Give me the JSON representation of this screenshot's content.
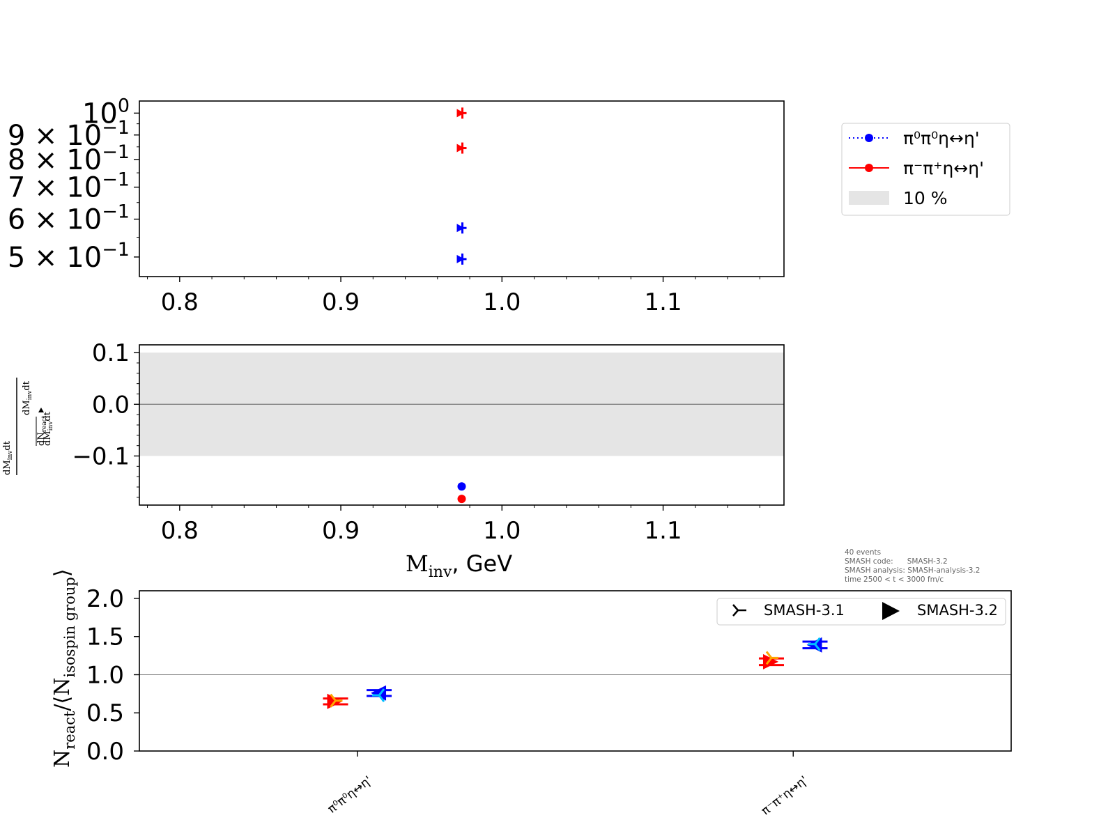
{
  "chart_data": [
    {
      "type": "scatter",
      "panel": "top",
      "yscale": "log",
      "xlim": [
        0.775,
        1.175
      ],
      "ylim": [
        0.455,
        1.06
      ],
      "xticks": [
        0.8,
        0.9,
        1.0,
        1.1
      ],
      "xtick_labels": [
        "0.8",
        "0.9",
        "1.0",
        "1.1"
      ],
      "ytick_labels": [
        {
          "value": 1.0,
          "mant": "",
          "exp": "0"
        },
        {
          "value": 0.9,
          "mant": "9 × ",
          "exp": "−1"
        },
        {
          "value": 0.8,
          "mant": "8 × ",
          "exp": "−1"
        },
        {
          "value": 0.7,
          "mant": "7 × ",
          "exp": "−1"
        },
        {
          "value": 0.6,
          "mant": "6 × ",
          "exp": "−1"
        },
        {
          "value": 0.5,
          "mant": "5 × ",
          "exp": "−1"
        }
      ],
      "series": [
        {
          "name": "π⁰π⁰η↔η'",
          "color": "#0000ff",
          "points": [
            {
              "x": 0.975,
              "y": 0.575
            },
            {
              "x": 0.975,
              "y": 0.495
            }
          ]
        },
        {
          "name": "π⁻π⁺η↔η'",
          "color": "#ff0000",
          "points": [
            {
              "x": 0.975,
              "y": 1.0
            },
            {
              "x": 0.975,
              "y": 0.845
            }
          ]
        }
      ],
      "legend": {
        "placement": "outside-right",
        "entries": [
          {
            "label": "π⁰π⁰η↔η'",
            "color": "#0000ff",
            "style": "dotted-line-dot"
          },
          {
            "label": "π⁻π⁺η↔η'",
            "color": "#ff0000",
            "style": "solid-line-dot"
          },
          {
            "label": "10 %",
            "color": "#e5e5e5",
            "style": "patch"
          }
        ]
      }
    },
    {
      "type": "scatter",
      "panel": "middle",
      "xlim": [
        0.775,
        1.175
      ],
      "ylim": [
        -0.195,
        0.115
      ],
      "band": [
        -0.1,
        0.1
      ],
      "hline": 0.0,
      "xticks": [
        0.8,
        0.9,
        1.0,
        1.1
      ],
      "xtick_labels": [
        "0.8",
        "0.9",
        "1.0",
        "1.1"
      ],
      "yticks": [
        0.1,
        0.0,
        -0.1
      ],
      "ytick_labels": [
        "0.1",
        "0.0",
        "−0.1"
      ],
      "xlabel_main": "M",
      "xlabel_sub": "inv",
      "xlabel_unit": ", GeV",
      "ylabel_fragments": [
        "dM",
        "inv",
        "dt",
        "dN",
        "react",
        "dM",
        "inv",
        "dt",
        "dM",
        "inv",
        "dt"
      ],
      "series": [
        {
          "name": "π⁰π⁰η↔η'",
          "color": "#0000ff",
          "points": [
            {
              "x": 0.975,
              "y": -0.159
            }
          ]
        },
        {
          "name": "π⁻π⁺η↔η'",
          "color": "#ff0000",
          "points": [
            {
              "x": 0.975,
              "y": -0.183
            }
          ]
        }
      ]
    },
    {
      "type": "scatter",
      "panel": "bottom",
      "categories": [
        "π⁰π⁰η↔η'",
        "π⁻π⁺η↔η'"
      ],
      "ylim": [
        0.0,
        2.1
      ],
      "yticks": [
        0.0,
        0.5,
        1.0,
        1.5,
        2.0
      ],
      "ytick_labels": [
        "0.0",
        "0.5",
        "1.0",
        "1.5",
        "2.0"
      ],
      "hline": 1.0,
      "ylabel_parts": [
        "N",
        "react",
        "/⟨N",
        "isospin group",
        "⟩"
      ],
      "info_text": [
        "40 events",
        "SMASH code:      SMASH-3.2",
        "SMASH analysis: SMASH-analysis-3.2",
        "time 2500 < t < 3000 fm/c"
      ],
      "series": [
        {
          "name": "SMASH-3.1",
          "marker": "tri",
          "points": [
            {
              "category": 0,
              "offset": -0.05,
              "y": 0.66,
              "color": "#ffa500",
              "err": 0.04
            },
            {
              "category": 0,
              "offset": 0.05,
              "y": 0.73,
              "color": "#00bfff",
              "err": 0.04
            },
            {
              "category": 1,
              "offset": -0.05,
              "y": 1.22,
              "color": "#ffa500",
              "err": 0.05
            },
            {
              "category": 1,
              "offset": 0.05,
              "y": 1.4,
              "color": "#00bfff",
              "err": 0.05
            }
          ]
        },
        {
          "name": "SMASH-3.2",
          "marker": "triangle",
          "points": [
            {
              "category": 0,
              "offset": -0.05,
              "y": 0.65,
              "color": "#ff0000",
              "err": 0.04
            },
            {
              "category": 0,
              "offset": 0.05,
              "y": 0.76,
              "color": "#0000ff",
              "err": 0.04
            },
            {
              "category": 1,
              "offset": -0.05,
              "y": 1.17,
              "color": "#ff0000",
              "err": 0.05
            },
            {
              "category": 1,
              "offset": 0.05,
              "y": 1.39,
              "color": "#0000ff",
              "err": 0.05
            }
          ]
        }
      ],
      "legend": {
        "placement": "top-right",
        "entries": [
          {
            "label": "SMASH-3.1",
            "marker": "tri"
          },
          {
            "label": "SMASH-3.2",
            "marker": "triangle"
          }
        ]
      }
    }
  ]
}
